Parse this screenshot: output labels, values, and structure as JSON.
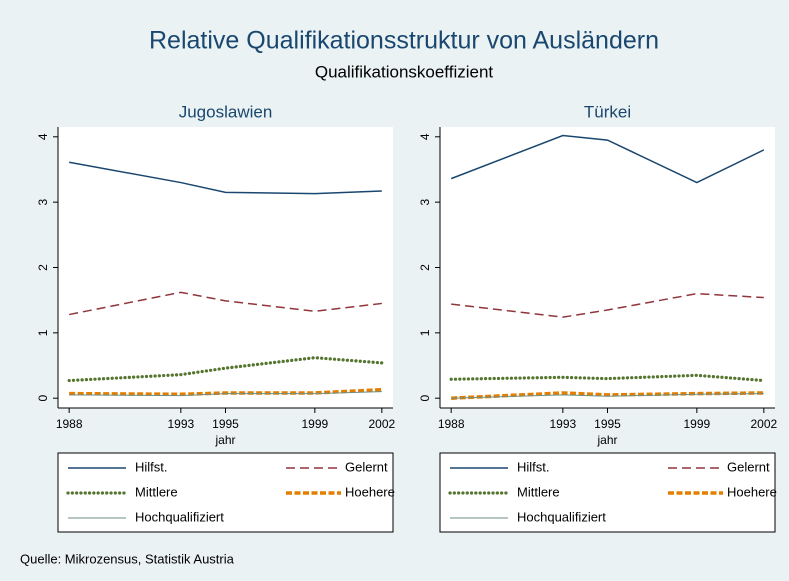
{
  "title": "Relative Qualifikationsstruktur von Ausländern",
  "subtitle": "Qualifikationskoeffizient",
  "note": "Quelle: Mikrozensus, Statistik Austria",
  "chart_data": [
    {
      "type": "line",
      "title": "Jugoslawien",
      "x_label": "jahr",
      "x": [
        1988,
        1993,
        1995,
        1999,
        2002
      ],
      "xlim": [
        1987.5,
        2002.5
      ],
      "xticks": [
        1988,
        1993,
        1995,
        1999,
        2002
      ],
      "ylim": [
        -0.15,
        4.15
      ],
      "yticks": [
        0,
        1,
        2,
        3,
        4
      ],
      "series": [
        {
          "name": "Hilfst.",
          "color": "#1a476f",
          "style": "solid",
          "values": [
            3.61,
            3.3,
            3.15,
            3.13,
            3.17
          ]
        },
        {
          "name": "Gelernt",
          "color": "#90353b",
          "style": "dashed",
          "values": [
            1.28,
            1.62,
            1.49,
            1.33,
            1.45
          ]
        },
        {
          "name": "Mittlere",
          "color": "#55752f",
          "style": "dotted",
          "values": [
            0.27,
            0.36,
            0.46,
            0.62,
            0.54
          ]
        },
        {
          "name": "Hoehere",
          "color": "#e37e00",
          "style": "thick-dashed",
          "values": [
            0.07,
            0.06,
            0.08,
            0.08,
            0.13
          ]
        },
        {
          "name": "Hochqualifiziert",
          "color": "#6e8e84",
          "style": "thin",
          "values": [
            0.05,
            0.04,
            0.07,
            0.07,
            0.1
          ]
        }
      ]
    },
    {
      "type": "line",
      "title": "Türkei",
      "x_label": "jahr",
      "x": [
        1988,
        1993,
        1995,
        1999,
        2002
      ],
      "xlim": [
        1987.5,
        2002.5
      ],
      "xticks": [
        1988,
        1993,
        1995,
        1999,
        2002
      ],
      "ylim": [
        -0.15,
        4.15
      ],
      "yticks": [
        0,
        1,
        2,
        3,
        4
      ],
      "series": [
        {
          "name": "Hilfst.",
          "color": "#1a476f",
          "style": "solid",
          "values": [
            3.36,
            4.02,
            3.95,
            3.3,
            3.8
          ]
        },
        {
          "name": "Gelernt",
          "color": "#90353b",
          "style": "dashed",
          "values": [
            1.44,
            1.24,
            1.35,
            1.6,
            1.54
          ]
        },
        {
          "name": "Mittlere",
          "color": "#55752f",
          "style": "dotted",
          "values": [
            0.29,
            0.32,
            0.3,
            0.35,
            0.27
          ]
        },
        {
          "name": "Hoehere",
          "color": "#e37e00",
          "style": "thick-dashed",
          "values": [
            0.0,
            0.08,
            0.05,
            0.07,
            0.08
          ]
        },
        {
          "name": "Hochqualifiziert",
          "color": "#6e8e84",
          "style": "thin",
          "values": [
            0.0,
            0.05,
            0.03,
            0.06,
            0.07
          ]
        }
      ]
    }
  ]
}
